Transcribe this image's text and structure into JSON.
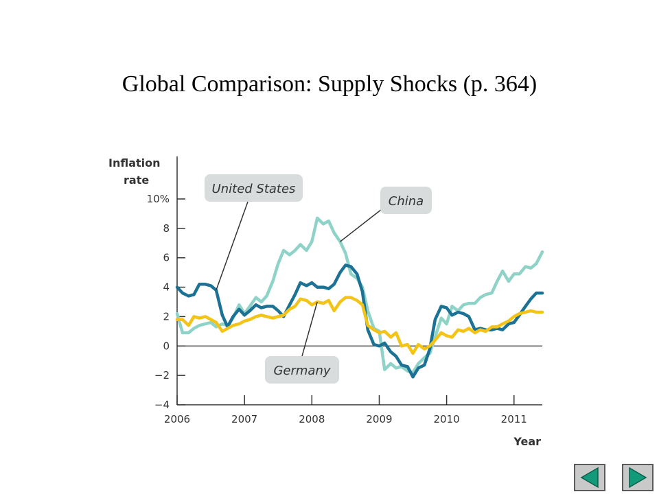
{
  "slide": {
    "title": "Global Comparison: Supply Shocks (p. 364)"
  },
  "nav": {
    "back_icon": "triangle-left-icon",
    "forward_icon": "triangle-right-icon",
    "icon_color": "#129a7a",
    "button_color": "#c9c9c9"
  },
  "chart_data": {
    "type": "line",
    "ylabel_line1": "Inflation",
    "ylabel_line2": "rate",
    "xlabel": "Year",
    "ylim": [
      -4,
      10
    ],
    "xlim": [
      2006,
      2011.42
    ],
    "y_ticks": [
      -4,
      -2,
      0,
      2,
      4,
      6,
      8,
      10
    ],
    "y_tick_labels": [
      "−4",
      "−2",
      "0",
      "2",
      "4",
      "6",
      "8",
      "10%"
    ],
    "x_ticks": [
      2006,
      2007,
      2008,
      2009,
      2010,
      2011
    ],
    "x_tick_labels": [
      "2006",
      "2007",
      "2008",
      "2009",
      "2010",
      "2011"
    ],
    "zero_line": true,
    "series": [
      {
        "name": "China",
        "color": "#8fd3c8",
        "x": [
          2006.0,
          2006.08,
          2006.17,
          2006.25,
          2006.33,
          2006.42,
          2006.5,
          2006.58,
          2006.67,
          2006.75,
          2006.83,
          2006.92,
          2007.0,
          2007.08,
          2007.17,
          2007.25,
          2007.33,
          2007.42,
          2007.5,
          2007.58,
          2007.67,
          2007.75,
          2007.83,
          2007.92,
          2008.0,
          2008.08,
          2008.17,
          2008.25,
          2008.33,
          2008.42,
          2008.5,
          2008.58,
          2008.67,
          2008.75,
          2008.83,
          2008.92,
          2009.0,
          2009.08,
          2009.17,
          2009.25,
          2009.33,
          2009.42,
          2009.5,
          2009.58,
          2009.67,
          2009.75,
          2009.83,
          2009.92,
          2010.0,
          2010.08,
          2010.17,
          2010.25,
          2010.33,
          2010.42,
          2010.5,
          2010.58,
          2010.67,
          2010.75,
          2010.83,
          2010.92,
          2011.0,
          2011.08,
          2011.17,
          2011.25,
          2011.33,
          2011.42
        ],
        "y": [
          2.2,
          0.9,
          0.9,
          1.2,
          1.4,
          1.5,
          1.6,
          1.3,
          1.5,
          1.4,
          1.9,
          2.8,
          2.2,
          2.7,
          3.3,
          3.0,
          3.4,
          4.4,
          5.6,
          6.5,
          6.2,
          6.5,
          6.9,
          6.5,
          7.1,
          8.7,
          8.3,
          8.5,
          7.7,
          7.1,
          6.3,
          4.9,
          4.6,
          4.0,
          2.4,
          1.2,
          1.0,
          -1.6,
          -1.2,
          -1.5,
          -1.4,
          -1.7,
          -1.8,
          -1.2,
          -0.8,
          -0.5,
          0.6,
          1.9,
          1.5,
          2.7,
          2.4,
          2.8,
          2.9,
          2.9,
          3.3,
          3.5,
          3.6,
          4.4,
          5.1,
          4.4,
          4.9,
          4.9,
          5.4,
          5.3,
          5.6,
          6.4
        ]
      },
      {
        "name": "United States",
        "color": "#1b7295",
        "x": [
          2006.0,
          2006.08,
          2006.17,
          2006.25,
          2006.33,
          2006.42,
          2006.5,
          2006.58,
          2006.67,
          2006.75,
          2006.83,
          2006.92,
          2007.0,
          2007.08,
          2007.17,
          2007.25,
          2007.33,
          2007.42,
          2007.5,
          2007.58,
          2007.67,
          2007.75,
          2007.83,
          2007.92,
          2008.0,
          2008.08,
          2008.17,
          2008.25,
          2008.33,
          2008.42,
          2008.5,
          2008.58,
          2008.67,
          2008.75,
          2008.83,
          2008.92,
          2009.0,
          2009.08,
          2009.17,
          2009.25,
          2009.33,
          2009.42,
          2009.5,
          2009.58,
          2009.67,
          2009.75,
          2009.83,
          2009.92,
          2010.0,
          2010.08,
          2010.17,
          2010.25,
          2010.33,
          2010.42,
          2010.5,
          2010.58,
          2010.67,
          2010.75,
          2010.83,
          2010.92,
          2011.0,
          2011.08,
          2011.17,
          2011.25,
          2011.33,
          2011.42
        ],
        "y": [
          4.0,
          3.6,
          3.4,
          3.5,
          4.2,
          4.2,
          4.1,
          3.8,
          2.1,
          1.3,
          2.0,
          2.5,
          2.1,
          2.4,
          2.8,
          2.6,
          2.7,
          2.7,
          2.4,
          2.0,
          2.8,
          3.5,
          4.3,
          4.1,
          4.3,
          4.0,
          4.0,
          3.9,
          4.2,
          5.0,
          5.5,
          5.4,
          4.9,
          3.7,
          1.1,
          0.1,
          0.0,
          0.2,
          -0.4,
          -0.7,
          -1.3,
          -1.4,
          -2.1,
          -1.5,
          -1.3,
          -0.2,
          1.8,
          2.7,
          2.6,
          2.1,
          2.3,
          2.2,
          2.0,
          1.1,
          1.2,
          1.1,
          1.1,
          1.2,
          1.1,
          1.5,
          1.6,
          2.1,
          2.7,
          3.2,
          3.6,
          3.6
        ]
      },
      {
        "name": "Germany",
        "color": "#f3c317",
        "x": [
          2006.0,
          2006.08,
          2006.17,
          2006.25,
          2006.33,
          2006.42,
          2006.5,
          2006.58,
          2006.67,
          2006.75,
          2006.83,
          2006.92,
          2007.0,
          2007.08,
          2007.17,
          2007.25,
          2007.33,
          2007.42,
          2007.5,
          2007.58,
          2007.67,
          2007.75,
          2007.83,
          2007.92,
          2008.0,
          2008.08,
          2008.17,
          2008.25,
          2008.33,
          2008.42,
          2008.5,
          2008.58,
          2008.67,
          2008.75,
          2008.83,
          2008.92,
          2009.0,
          2009.08,
          2009.17,
          2009.25,
          2009.33,
          2009.42,
          2009.5,
          2009.58,
          2009.67,
          2009.75,
          2009.83,
          2009.92,
          2010.0,
          2010.08,
          2010.17,
          2010.25,
          2010.33,
          2010.42,
          2010.5,
          2010.58,
          2010.67,
          2010.75,
          2010.83,
          2010.92,
          2011.0,
          2011.08,
          2011.17,
          2011.25,
          2011.33,
          2011.42
        ],
        "y": [
          1.8,
          1.8,
          1.4,
          2.0,
          1.9,
          2.0,
          1.8,
          1.6,
          1.0,
          1.2,
          1.4,
          1.5,
          1.7,
          1.8,
          2.0,
          2.1,
          2.0,
          1.9,
          2.0,
          2.1,
          2.5,
          2.7,
          3.2,
          3.1,
          2.8,
          3.0,
          2.9,
          3.1,
          2.4,
          3.0,
          3.3,
          3.3,
          3.1,
          2.8,
          1.4,
          1.1,
          0.9,
          1.0,
          0.6,
          0.9,
          0.0,
          0.1,
          -0.5,
          0.1,
          -0.2,
          0.0,
          0.4,
          0.9,
          0.7,
          0.6,
          1.1,
          1.0,
          1.2,
          0.9,
          1.1,
          1.0,
          1.3,
          1.3,
          1.5,
          1.7,
          2.0,
          2.2,
          2.3,
          2.4,
          2.3,
          2.3
        ]
      }
    ],
    "annotations": [
      {
        "text": "United States",
        "series": "United States"
      },
      {
        "text": "China",
        "series": "China"
      },
      {
        "text": "Germany",
        "series": "Germany"
      }
    ],
    "callout_bg": "#d8dcdc"
  }
}
